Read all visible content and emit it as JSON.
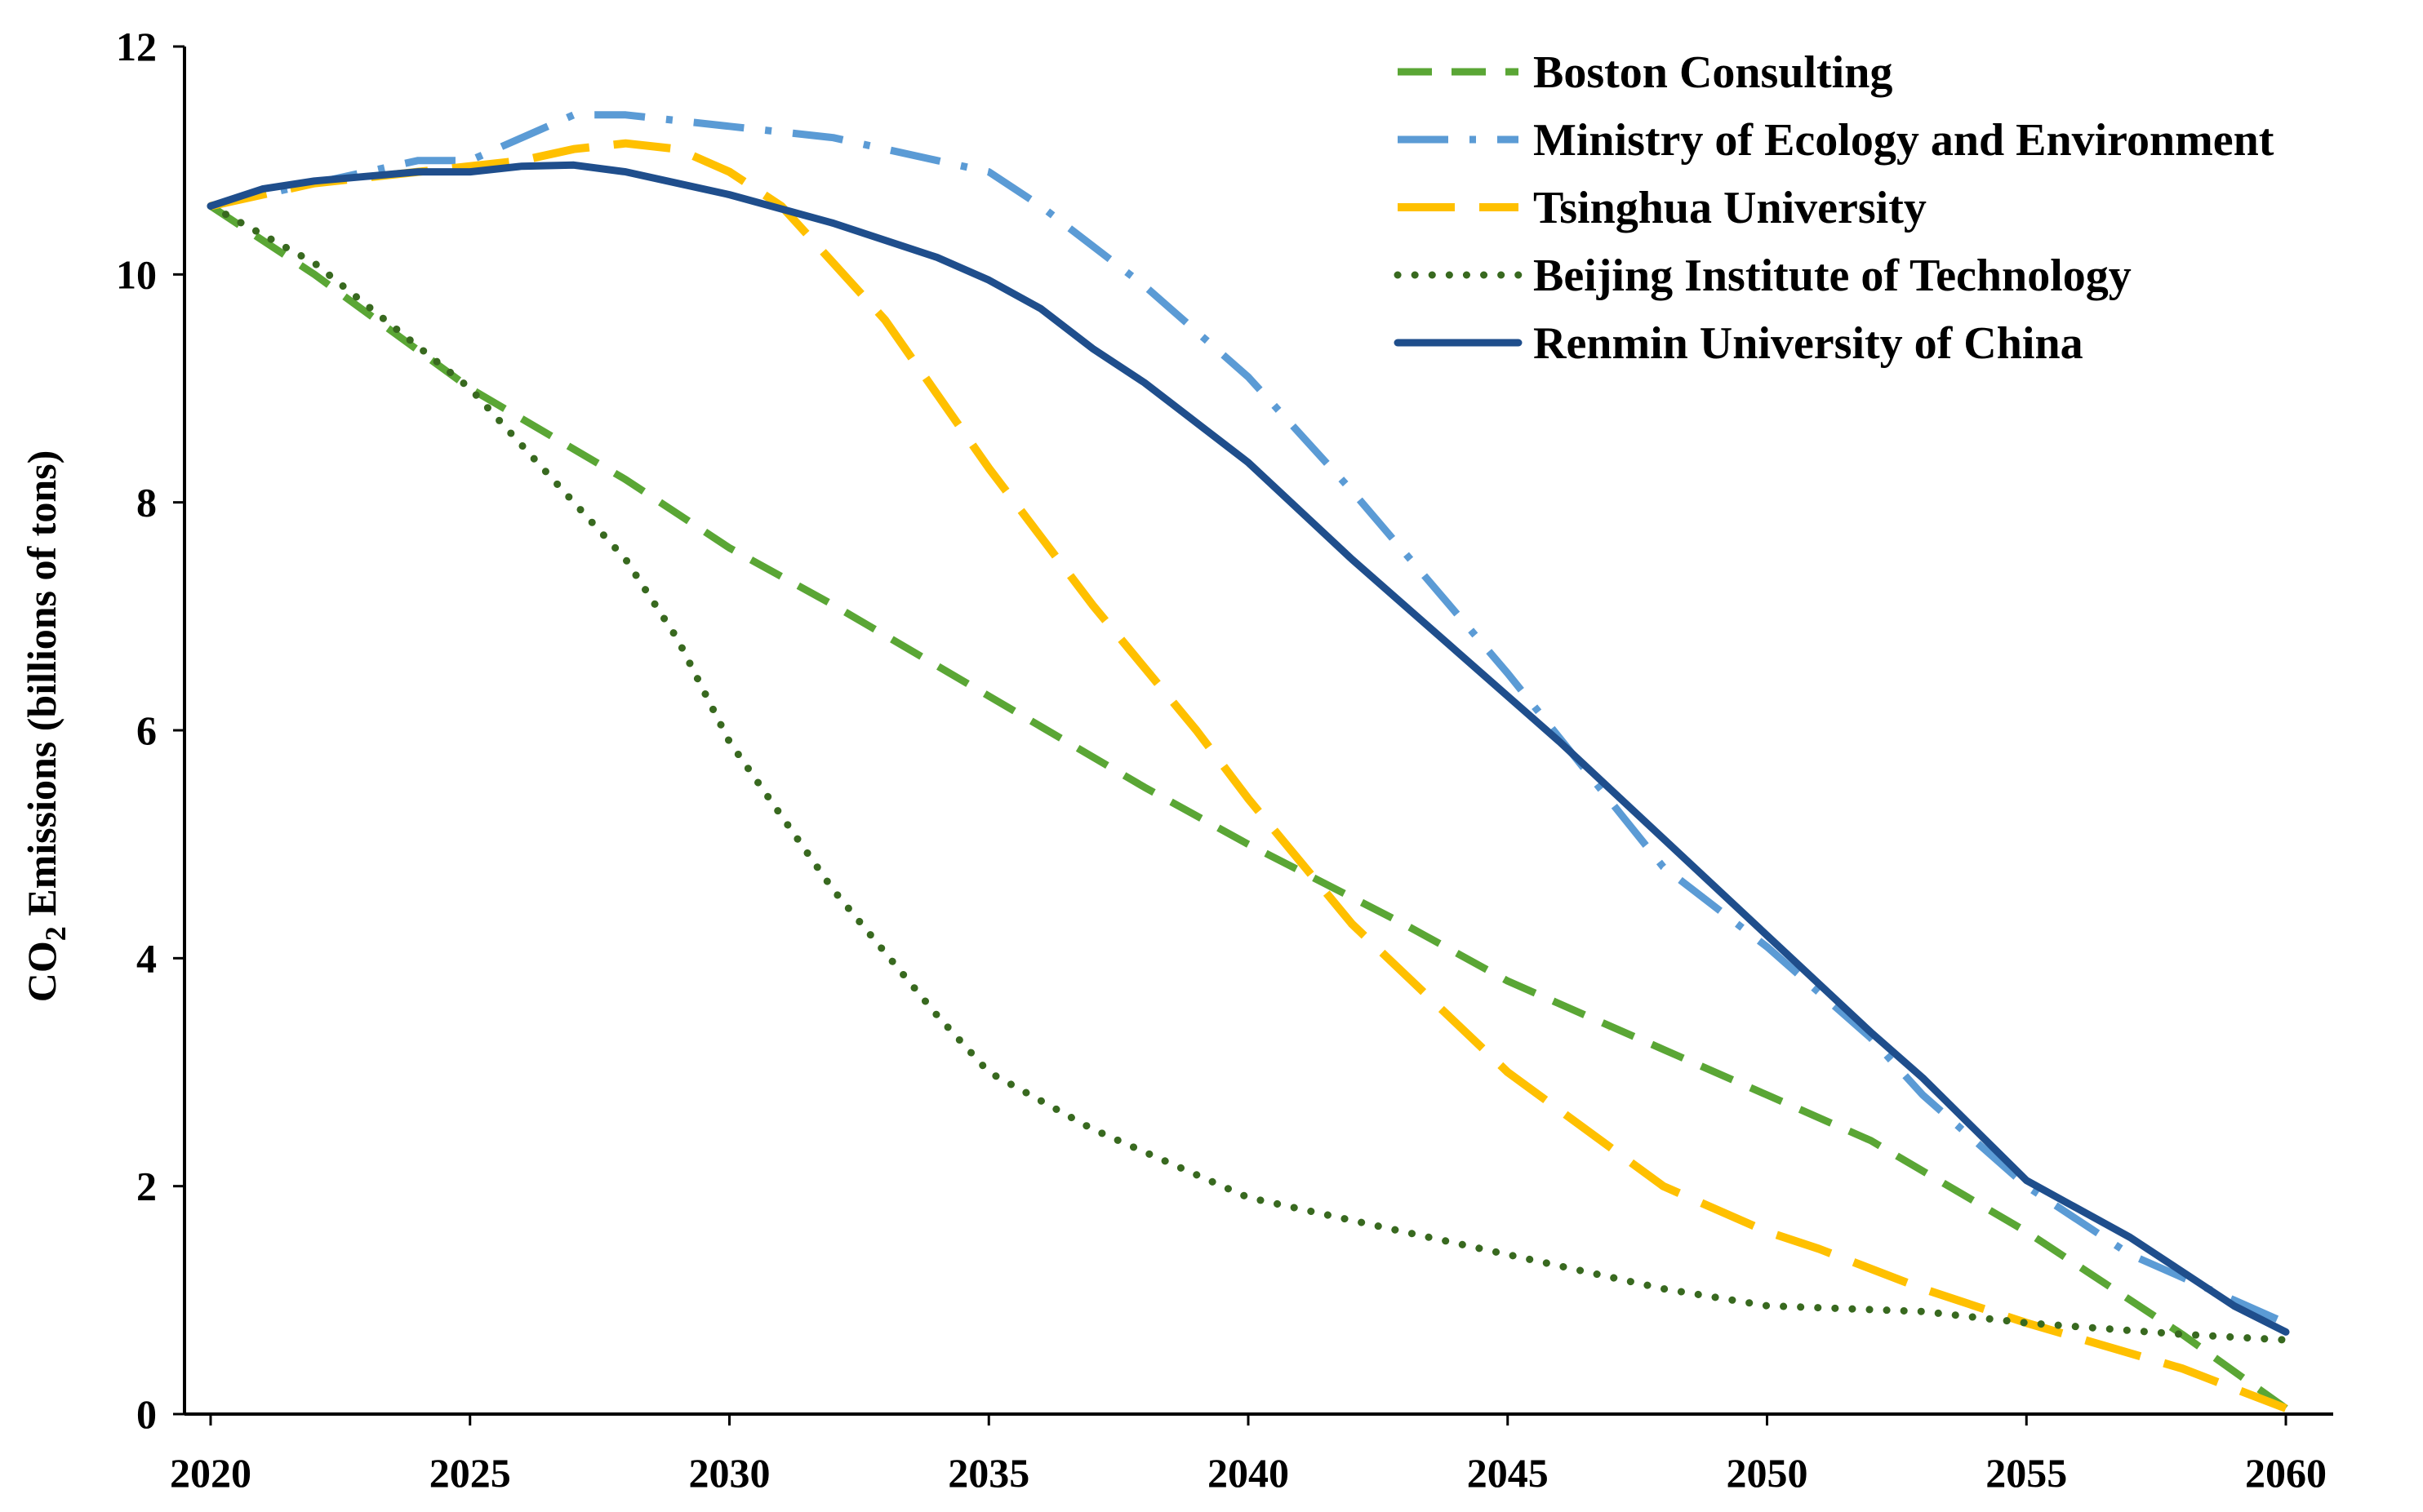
{
  "chart_data": {
    "type": "line",
    "title": "",
    "xlabel": "",
    "ylabel": {
      "prefix": "CO",
      "subscript": "2",
      "suffix": " Emissions (billions of tons)"
    },
    "xlim": [
      2020,
      2060
    ],
    "ylim": [
      0,
      12
    ],
    "xticks": [
      "2020",
      "2025",
      "2030",
      "2035",
      "2040",
      "2045",
      "2050",
      "2055",
      "2060"
    ],
    "yticks": [
      "0",
      "2",
      "4",
      "6",
      "8",
      "10",
      "12"
    ],
    "grid": false,
    "legend_position": "top-right",
    "series": [
      {
        "name": "Boston Consulting",
        "color": "#5aa635",
        "style": "dashed",
        "x": [
          2020,
          2022,
          2025,
          2028,
          2030,
          2032,
          2035,
          2038,
          2040,
          2043,
          2045,
          2048,
          2050,
          2052,
          2055,
          2058,
          2060
        ],
        "y": [
          10.6,
          10.0,
          9.0,
          8.2,
          7.6,
          7.1,
          6.3,
          5.5,
          5.0,
          4.3,
          3.8,
          3.2,
          2.8,
          2.4,
          1.6,
          0.7,
          0.05
        ]
      },
      {
        "name": "Ministry of Ecology and Environment",
        "color": "#5b9bd5",
        "style": "dash-dot",
        "x": [
          2020,
          2022,
          2024,
          2025,
          2026,
          2027,
          2028,
          2030,
          2032,
          2034,
          2035,
          2036,
          2038,
          2040,
          2042,
          2045,
          2048,
          2050,
          2052,
          2053,
          2055,
          2057,
          2059,
          2060
        ],
        "y": [
          10.6,
          10.8,
          11.0,
          11.0,
          11.2,
          11.4,
          11.4,
          11.3,
          11.2,
          11.0,
          10.9,
          10.6,
          9.9,
          9.1,
          8.1,
          6.5,
          4.8,
          4.1,
          3.3,
          2.8,
          2.0,
          1.4,
          1.0,
          0.8
        ]
      },
      {
        "name": "Tsinghua University",
        "color": "#ffc000",
        "style": "long-dash",
        "x": [
          2020,
          2022,
          2024,
          2026,
          2027,
          2028,
          2029,
          2030,
          2031,
          2033,
          2035,
          2037,
          2039,
          2040,
          2042,
          2045,
          2048,
          2050,
          2051,
          2053,
          2055,
          2058,
          2060
        ],
        "y": [
          10.6,
          10.8,
          10.9,
          11.0,
          11.1,
          11.15,
          11.1,
          10.9,
          10.6,
          9.6,
          8.3,
          7.1,
          6.0,
          5.4,
          4.3,
          3.0,
          2.0,
          1.6,
          1.45,
          1.1,
          0.8,
          0.4,
          0.05
        ]
      },
      {
        "name": "Beijing Institute of Technology",
        "color": "#38691f",
        "style": "dotted",
        "x": [
          2020,
          2022,
          2025,
          2028,
          2029,
          2030,
          2032,
          2034,
          2035,
          2037,
          2040,
          2042,
          2045,
          2048,
          2050,
          2053,
          2055,
          2058,
          2060
        ],
        "y": [
          10.6,
          10.1,
          9.0,
          7.5,
          6.8,
          5.9,
          4.6,
          3.5,
          3.0,
          2.5,
          1.9,
          1.7,
          1.4,
          1.1,
          0.95,
          0.9,
          0.8,
          0.7,
          0.65
        ]
      },
      {
        "name": "Renmin University of China",
        "color": "#1f4e8c",
        "style": "solid",
        "x": [
          2020,
          2021,
          2022,
          2023,
          2024,
          2025,
          2026,
          2027,
          2028,
          2029,
          2030,
          2032,
          2034,
          2035,
          2036,
          2037,
          2038,
          2039,
          2040,
          2042,
          2044,
          2046,
          2048,
          2050,
          2052,
          2053,
          2054,
          2055,
          2056,
          2057,
          2058,
          2059,
          2060
        ],
        "y": [
          10.6,
          10.75,
          10.82,
          10.86,
          10.9,
          10.9,
          10.95,
          10.96,
          10.9,
          10.8,
          10.7,
          10.45,
          10.15,
          9.95,
          9.7,
          9.35,
          9.05,
          8.7,
          8.35,
          7.5,
          6.7,
          5.9,
          5.05,
          4.2,
          3.35,
          2.95,
          2.5,
          2.05,
          1.8,
          1.55,
          1.25,
          0.95,
          0.72
        ]
      }
    ]
  }
}
